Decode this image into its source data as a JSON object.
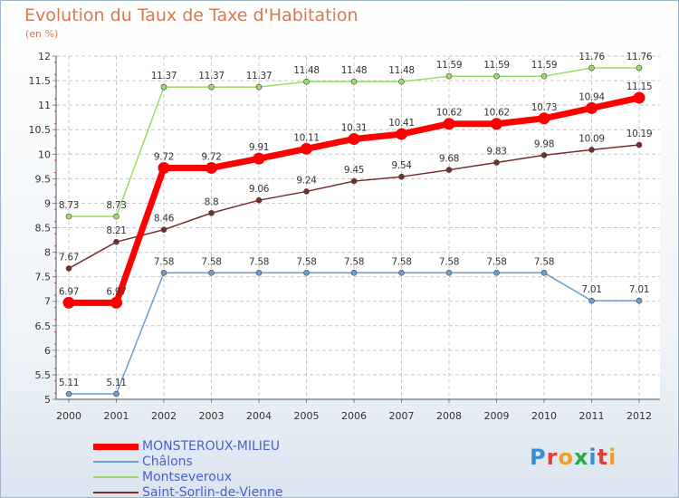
{
  "header": {
    "title": "Evolution du Taux de Taxe d'Habitation",
    "subtitle": "(en %)"
  },
  "logo": {
    "text": "ProXiti",
    "letters": [
      "P",
      "r",
      "o",
      "x",
      "i",
      "t",
      "i"
    ],
    "colors": [
      "#3a8ed6",
      "#e0403a",
      "#f0a020",
      "#2aa84a",
      "#3a8ed6",
      "#e0403a",
      "#f0a020"
    ]
  },
  "chart_data": {
    "type": "line",
    "x": [
      "2000",
      "2001",
      "2002",
      "2003",
      "2004",
      "2005",
      "2006",
      "2007",
      "2008",
      "2009",
      "2010",
      "2011",
      "2012"
    ],
    "ylim": [
      5,
      12
    ],
    "yticks": [
      "5",
      "5.5",
      "6",
      "6.5",
      "7",
      "7.5",
      "8",
      "8.5",
      "9",
      "9.5",
      "10",
      "10.5",
      "11",
      "11.5",
      "12"
    ],
    "grid": true,
    "series": [
      {
        "name": "MONSTEROUX-MILIEU",
        "color": "#ff0000",
        "labels": [
          "6.97",
          "6.97",
          "9.72",
          "9.72",
          "9.91",
          "10.11",
          "10.31",
          "10.41",
          "10.62",
          "10.62",
          "10.73",
          "10.94",
          "11.15"
        ],
        "values": [
          6.97,
          6.97,
          9.72,
          9.72,
          9.91,
          10.11,
          10.31,
          10.41,
          10.62,
          10.62,
          10.73,
          10.94,
          11.15
        ]
      },
      {
        "name": "Châlons",
        "color": "#6a9ecf",
        "labels": [
          "5.11",
          "5.11",
          "7.58",
          "7.58",
          "7.58",
          "7.58",
          "7.58",
          "7.58",
          "7.58",
          "7.58",
          "7.58",
          "7.01",
          "7.01"
        ],
        "values": [
          5.11,
          5.11,
          7.58,
          7.58,
          7.58,
          7.58,
          7.58,
          7.58,
          7.58,
          7.58,
          7.58,
          7.01,
          7.01
        ]
      },
      {
        "name": "Montseveroux",
        "color": "#99dd66",
        "labels": [
          "8.73",
          "8.73",
          "11.37",
          "11.37",
          "11.37",
          "11.48",
          "11.48",
          "11.48",
          "11.59",
          "11.59",
          "11.59",
          "11.76",
          "11.76"
        ],
        "values": [
          8.73,
          8.73,
          11.37,
          11.37,
          11.37,
          11.48,
          11.48,
          11.48,
          11.59,
          11.59,
          11.59,
          11.76,
          11.76
        ]
      },
      {
        "name": "Saint-Sorlin-de-Vienne",
        "color": "#7a2a2a",
        "labels": [
          "7.67",
          "8.21",
          "8.46",
          "8.8",
          "9.06",
          "9.24",
          "9.45",
          "9.54",
          "9.68",
          "9.83",
          "9.98",
          "10.09",
          "10.19"
        ],
        "values": [
          7.67,
          8.21,
          8.46,
          8.8,
          9.06,
          9.24,
          9.45,
          9.54,
          9.68,
          9.83,
          9.98,
          10.09,
          10.19
        ]
      }
    ]
  }
}
